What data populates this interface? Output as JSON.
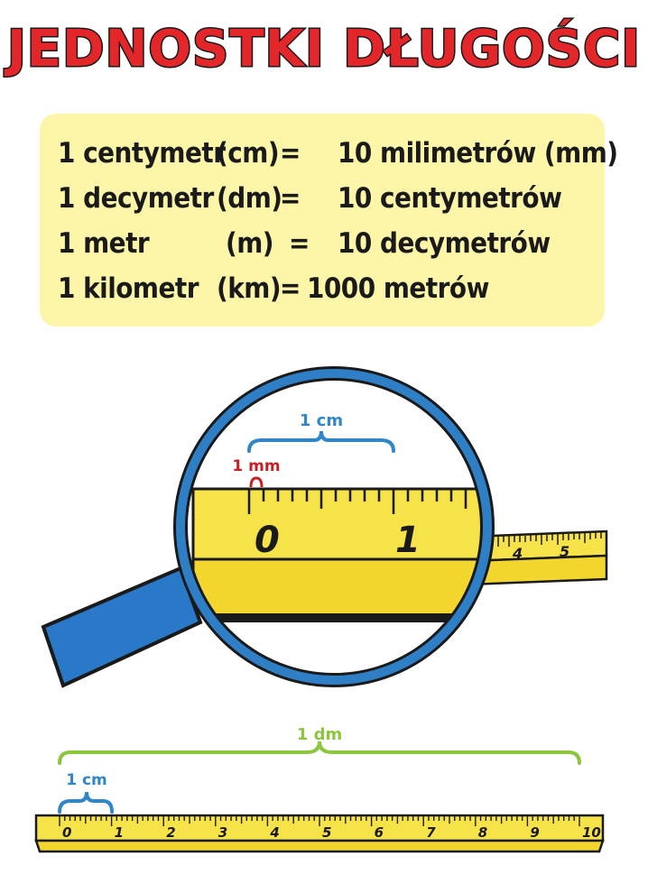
{
  "title": "JEDNOSTKI DŁUGOŚCI",
  "units": [
    {
      "name": "1 centymetr",
      "symbol": "(cm)",
      "eq": "=",
      "value": "10 milimetrów (mm)"
    },
    {
      "name": "1 decymetr",
      "symbol": "(dm)",
      "eq": "=",
      "value": "10 centymetrów"
    },
    {
      "name": "1 metr",
      "symbol": "(m)",
      "eq": "=",
      "value": "10 decymetrów"
    },
    {
      "name": "1 kilometr",
      "symbol": "(km)",
      "eq": "=",
      "value": "1000 metrów"
    }
  ],
  "magnifier": {
    "cm_label": "1 cm",
    "mm_label": "1 mm",
    "zero": "0",
    "one": "1",
    "outside_labels": [
      "4",
      "5"
    ]
  },
  "ruler": {
    "dm_label": "1 dm",
    "cm_label": "1 cm",
    "numbers": [
      "0",
      "1",
      "2",
      "3",
      "4",
      "5",
      "6",
      "7",
      "8",
      "9",
      "10"
    ]
  },
  "colors": {
    "title_red": "#e3262a",
    "box_yellow": "#fdf6a8",
    "ruler_yellow": "#f6e34a",
    "lens_blue": "#2f7fc6",
    "handle_blue": "#2a79c9",
    "cm_blue": "#2f86c8",
    "mm_red": "#c62026",
    "dm_green": "#8cc63f"
  }
}
